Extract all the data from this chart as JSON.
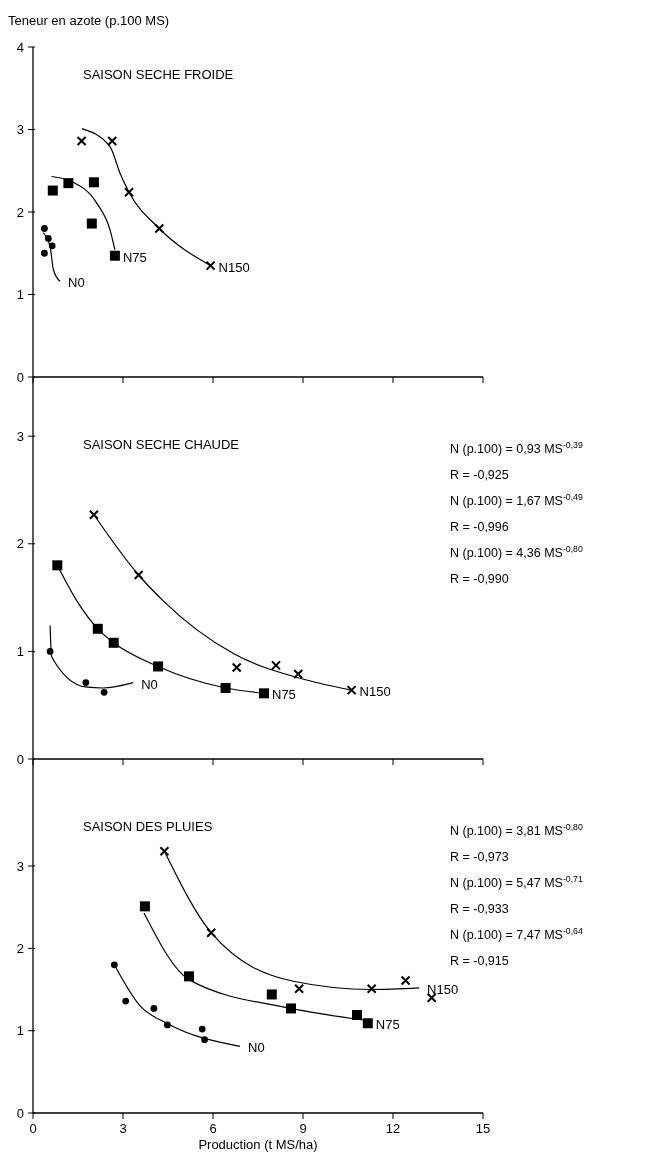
{
  "chart_data": [
    {
      "type": "scatter",
      "title": "SAISON SECHE FROIDE",
      "ylabel": "Teneur en azote (p.100 MS)",
      "xlim": [
        0,
        15
      ],
      "xticks": [
        0,
        3,
        6,
        9,
        12,
        15
      ],
      "ylim": [
        0,
        4
      ],
      "yticks": [
        0,
        1,
        2,
        3,
        4
      ],
      "tick_labels": "y",
      "series": [
        {
          "type": "scatter",
          "marker": "circle",
          "color": "#000000",
          "x": [
            0.38,
            0.51,
            0.64,
            0.38
          ],
          "values": [
            1.8,
            1.68,
            1.59,
            1.5
          ]
        },
        {
          "type": "line",
          "marker": "none",
          "color": "#000000",
          "x": [
            0.34,
            0.57,
            0.68,
            0.9
          ],
          "values": [
            1.75,
            1.58,
            1.3,
            1.16
          ]
        },
        {
          "type": "scatter",
          "marker": "square",
          "color": "#000000",
          "x": [
            0.66,
            1.18,
            2.03,
            1.96,
            2.73
          ],
          "values": [
            2.26,
            2.35,
            2.36,
            1.86,
            1.47
          ]
        },
        {
          "type": "line",
          "marker": "none",
          "color": "#000000",
          "x": [
            0.62,
            1.28,
            2.12,
            2.57,
            2.73
          ],
          "values": [
            2.43,
            2.37,
            2.11,
            1.78,
            1.54
          ]
        },
        {
          "type": "scatter",
          "marker": "cross",
          "color": "#000000",
          "x": [
            1.62,
            2.64,
            3.2,
            4.21,
            5.92
          ],
          "values": [
            2.86,
            2.86,
            2.24,
            1.8,
            1.35
          ]
        },
        {
          "type": "line",
          "marker": "none",
          "color": "#000000",
          "x": [
            1.63,
            2.57,
            2.9,
            3.2,
            4.21,
            5.92
          ],
          "values": [
            3.01,
            2.79,
            2.47,
            2.24,
            1.8,
            1.35
          ]
        }
      ],
      "annotations": [
        {
          "text": "N0",
          "x": 0.9,
          "y": 1.16
        },
        {
          "text": "N75",
          "x": 2.73,
          "y": 1.47
        },
        {
          "text": "N150",
          "x": 5.92,
          "y": 1.35
        }
      ]
    },
    {
      "type": "scatter",
      "title": "SAISON SECHE CHAUDE",
      "xlim": [
        0,
        15
      ],
      "xticks": [
        0,
        3,
        6,
        9,
        12,
        15
      ],
      "ylim": [
        0,
        3.55
      ],
      "yticks": [
        0,
        1,
        2,
        3
      ],
      "tick_labels": "y",
      "series": [
        {
          "type": "scatter",
          "marker": "circle",
          "color": "#000000",
          "x": [
            0.57,
            1.76,
            2.37
          ],
          "values": [
            1.0,
            0.71,
            0.62
          ]
        },
        {
          "type": "line",
          "marker": "none",
          "color": "#000000",
          "x": [
            0.57,
            0.62,
            1.74,
            2.33,
            3.34
          ],
          "values": [
            1.24,
            0.95,
            0.67,
            0.66,
            0.71
          ]
        },
        {
          "type": "scatter",
          "marker": "square",
          "color": "#000000",
          "x": [
            0.81,
            2.16,
            2.69,
            4.17,
            6.42,
            7.7
          ],
          "values": [
            1.8,
            1.21,
            1.08,
            0.86,
            0.66,
            0.61
          ]
        },
        {
          "type": "line",
          "marker": "none",
          "color": "#000000",
          "x": [
            0.81,
            1.46,
            2.16,
            2.69,
            4.17,
            6.42,
            7.7
          ],
          "values": [
            1.8,
            1.47,
            1.21,
            1.08,
            0.86,
            0.66,
            0.61
          ]
        },
        {
          "type": "scatter",
          "marker": "cross",
          "color": "#000000",
          "x": [
            2.03,
            3.52,
            6.79,
            8.1,
            8.84,
            10.62
          ],
          "values": [
            2.27,
            1.71,
            0.85,
            0.87,
            0.79,
            0.64
          ]
        },
        {
          "type": "line",
          "marker": "none",
          "color": "#000000",
          "x": [
            2.03,
            3.52,
            4.34,
            6.68,
            8.9,
            10.62
          ],
          "values": [
            2.27,
            1.71,
            1.47,
            0.98,
            0.75,
            0.64
          ]
        }
      ],
      "annotations": [
        "N (p.100) = 0,93 MS$^{-0,39}$",
        "R = -0,925",
        "N (p.100) = 1,67 MS$^{-0,49}$",
        "R = -0,996",
        "N (p.100) = 4,36 MS$^{-0,80}$",
        "R = -0,990",
        {
          "text": "N0",
          "x": 3.34,
          "y": 0.71
        },
        {
          "text": "N75",
          "x": 7.7,
          "y": 0.61
        },
        {
          "text": "N150",
          "x": 10.62,
          "y": 0.64
        }
      ]
    },
    {
      "type": "scatter",
      "title": "SAISON DES PLUIES",
      "xlabel": "Production (t MS/ha)",
      "xlim": [
        0,
        15
      ],
      "xticks": [
        0,
        3,
        6,
        9,
        12,
        15
      ],
      "ylim": [
        0,
        4.3
      ],
      "yticks": [
        0,
        1,
        2,
        3
      ],
      "series": [
        {
          "type": "scatter",
          "marker": "circle",
          "color": "#000000",
          "x": [
            2.71,
            3.09,
            4.03,
            4.48,
            5.64,
            5.72
          ],
          "values": [
            1.8,
            1.36,
            1.27,
            1.07,
            1.02,
            0.89
          ]
        },
        {
          "type": "line",
          "marker": "none",
          "color": "#000000",
          "x": [
            2.71,
            3.57,
            4.46,
            6.9
          ],
          "values": [
            1.8,
            1.3,
            1.09,
            0.81
          ]
        },
        {
          "type": "scatter",
          "marker": "square",
          "color": "#000000",
          "x": [
            3.73,
            5.2,
            7.96,
            8.6,
            10.8,
            11.16
          ],
          "values": [
            2.51,
            1.66,
            1.44,
            1.27,
            1.19,
            1.09
          ]
        },
        {
          "type": "line",
          "marker": "none",
          "color": "#000000",
          "x": [
            3.7,
            5.2,
            8.6,
            11.0
          ],
          "values": [
            2.43,
            1.62,
            1.27,
            1.13
          ]
        },
        {
          "type": "scatter",
          "marker": "cross",
          "color": "#000000",
          "x": [
            4.38,
            5.94,
            8.87,
            11.29,
            12.42,
            13.29
          ],
          "values": [
            3.18,
            2.19,
            1.51,
            1.51,
            1.61,
            1.4
          ]
        },
        {
          "type": "line",
          "marker": "none",
          "color": "#000000",
          "x": [
            4.38,
            5.94,
            8.68,
            11.29,
            12.87
          ],
          "values": [
            3.18,
            2.19,
            1.6,
            1.5,
            1.52
          ]
        }
      ],
      "annotations": [
        "N (p.100) = 3,81 MS$^{-0,80}$",
        "R = -0,973",
        "N (p.100) = 5,47 MS$^{-0,71}$",
        "R = -0,933",
        "N (p.100) = 7,47 MS$^{-0,64}$",
        "R = -0,915",
        {
          "text": "N0",
          "x": 6.9,
          "y": 0.81
        },
        {
          "text": "N75",
          "x": 11.16,
          "y": 1.09
        },
        {
          "text": "N150",
          "x": 12.87,
          "y": 1.52
        }
      ]
    }
  ]
}
